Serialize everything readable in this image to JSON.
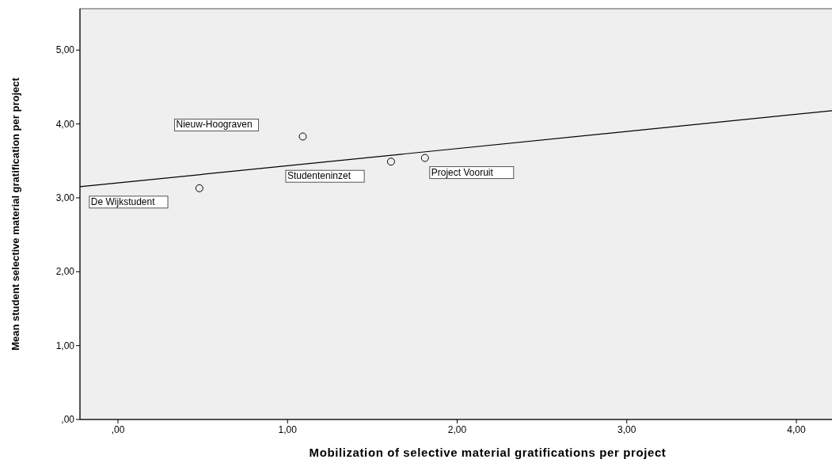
{
  "chart_data": {
    "type": "scatter",
    "xlabel": "Mobilization of selective material gratifications per project",
    "ylabel": "Mean student selective material gratification per project",
    "xlim": [
      -0.224,
      4.21
    ],
    "ylim": [
      0,
      5.56
    ],
    "xticks": [
      {
        "value": 0,
        "label": ",00"
      },
      {
        "value": 1,
        "label": "1,00"
      },
      {
        "value": 2,
        "label": "2,00"
      },
      {
        "value": 3,
        "label": "3,00"
      },
      {
        "value": 4,
        "label": "4,00"
      }
    ],
    "yticks": [
      {
        "value": 0,
        "label": ",00"
      },
      {
        "value": 1,
        "label": "1,00"
      },
      {
        "value": 2,
        "label": "2,00"
      },
      {
        "value": 3,
        "label": "3,00"
      },
      {
        "value": 4,
        "label": "4,00"
      },
      {
        "value": 5,
        "label": "5,00"
      }
    ],
    "grid": false,
    "series": [
      {
        "color": "#000000",
        "marker": "circle",
        "x": [
          0.48,
          1.09,
          1.61,
          1.81
        ],
        "values": [
          3.13,
          3.83,
          3.49,
          3.54
        ]
      },
      {
        "type": "line",
        "color": "#000000",
        "marker": "none",
        "x": [
          -0.224,
          4.21
        ],
        "values": [
          3.15,
          4.18
        ]
      }
    ],
    "annotations": [
      "De Wijkstudent",
      "Nieuw-Hoograven",
      "Studenteninzet",
      "Project Vooruit"
    ]
  }
}
